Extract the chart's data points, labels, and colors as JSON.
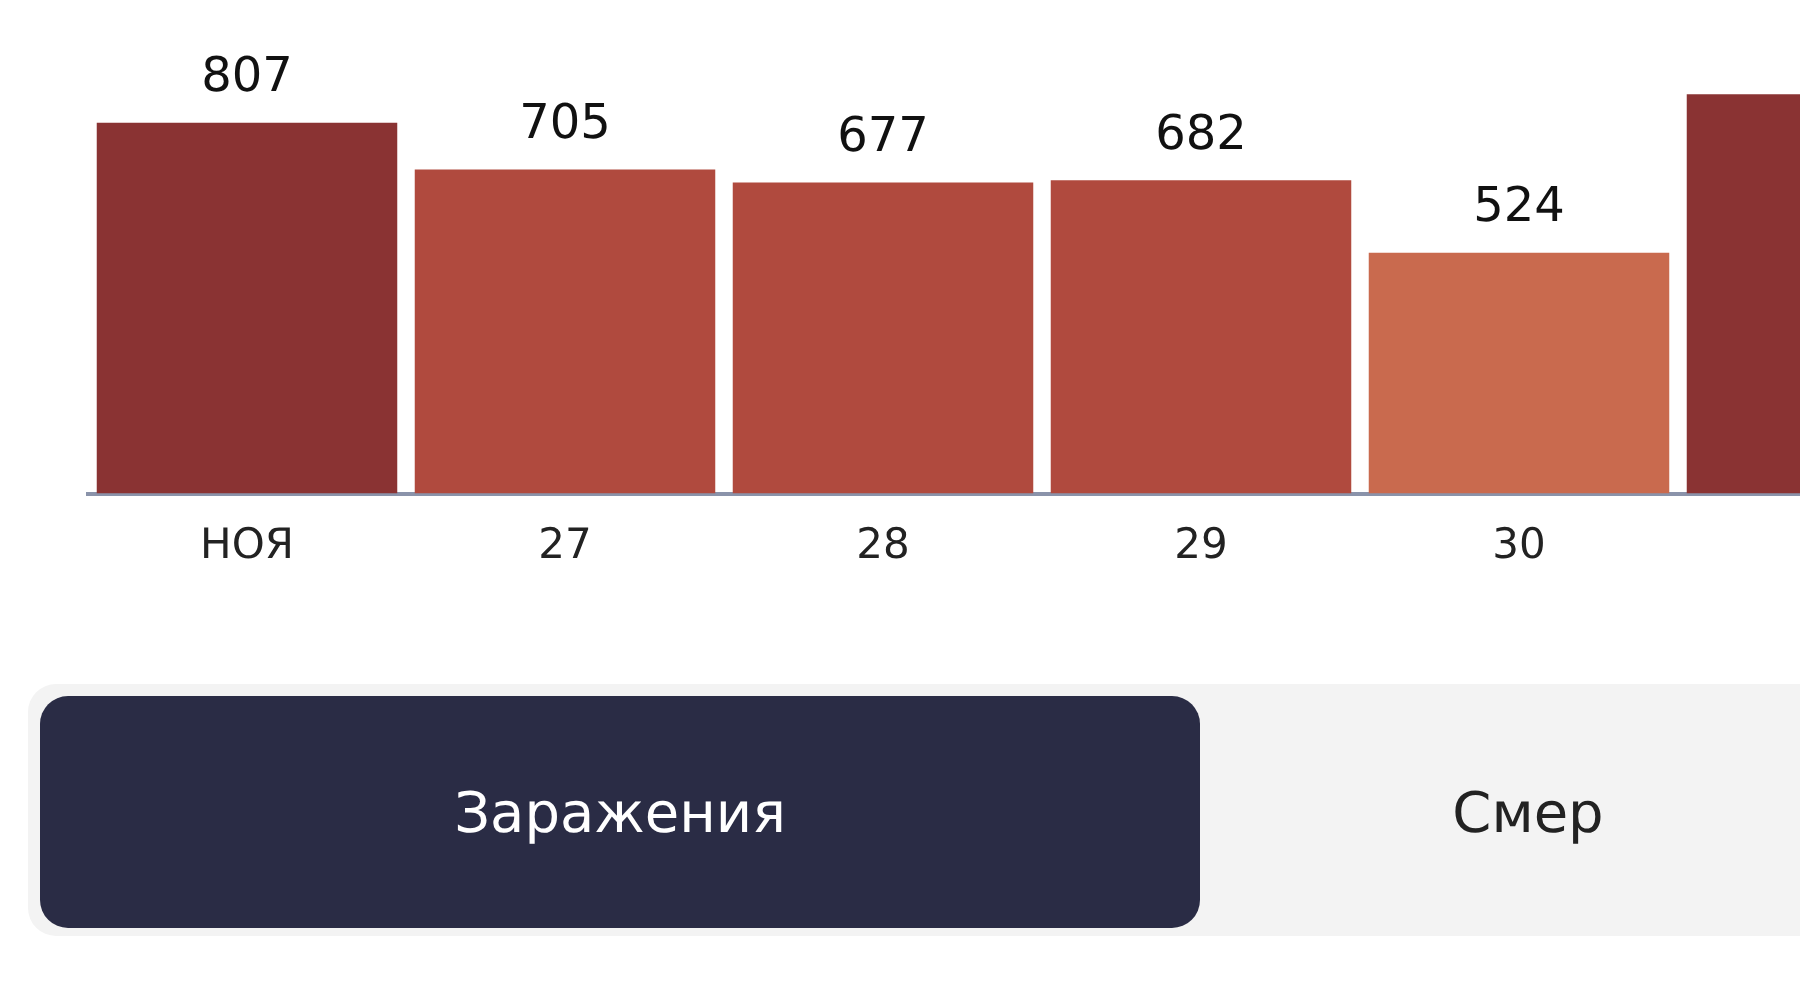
{
  "chart_data": {
    "type": "bar",
    "categories": [
      "НОЯ",
      "27",
      "28",
      "29",
      "30",
      null
    ],
    "values": [
      807,
      705,
      677,
      682,
      524,
      869
    ],
    "colors": [
      "#8a3333",
      "#b04a3e",
      "#b04a3e",
      "#b04a3e",
      "#c96a4e",
      "#8a3333"
    ],
    "value_labels": [
      "807",
      "705",
      "677",
      "682",
      "524",
      null
    ],
    "annotations": [
      "Заражения",
      "Смер"
    ],
    "grid": false,
    "legend": false,
    "tick_labels": "x"
  }
}
